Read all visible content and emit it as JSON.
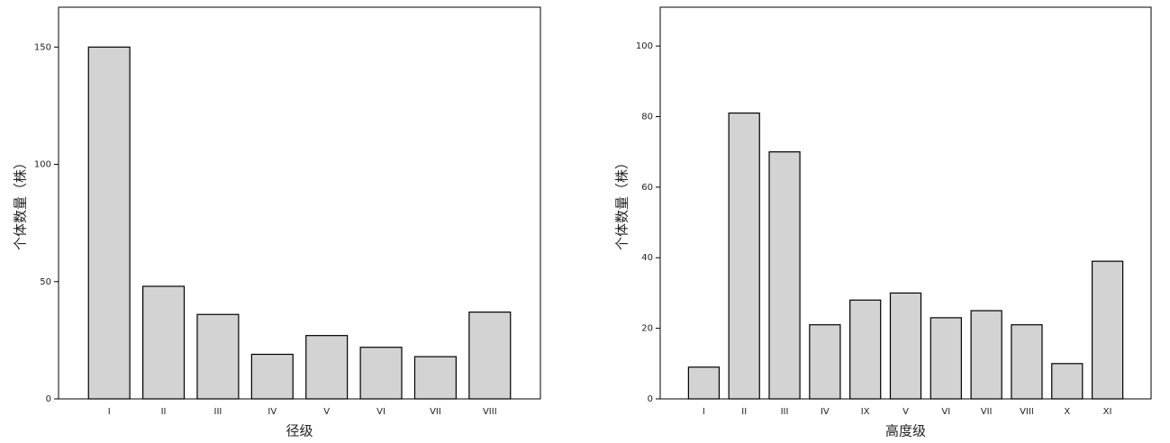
{
  "chart_data": [
    {
      "type": "bar",
      "x_label": "径级",
      "y_label": "个体数量（株）",
      "categories": [
        "I",
        "II",
        "III",
        "IV",
        "V",
        "VI",
        "VII",
        "VIII"
      ],
      "values": [
        150,
        48,
        36,
        19,
        27,
        22,
        18,
        37
      ],
      "color": "#d3d3d3",
      "ylim": [
        0,
        167
      ],
      "yticks": [
        0,
        50,
        100,
        150
      ]
    },
    {
      "type": "bar",
      "x_label": "高度级",
      "y_label": "个体数量（株）",
      "categories": [
        "I",
        "II",
        "III",
        "IV",
        "IX",
        "V",
        "VI",
        "VII",
        "VIII",
        "X",
        "XI"
      ],
      "values": [
        9,
        81,
        70,
        21,
        28,
        30,
        23,
        25,
        21,
        10,
        39
      ],
      "color": "#d3d3d3",
      "ylim": [
        0,
        111
      ],
      "yticks": [
        0,
        20,
        40,
        60,
        80,
        100
      ]
    }
  ]
}
